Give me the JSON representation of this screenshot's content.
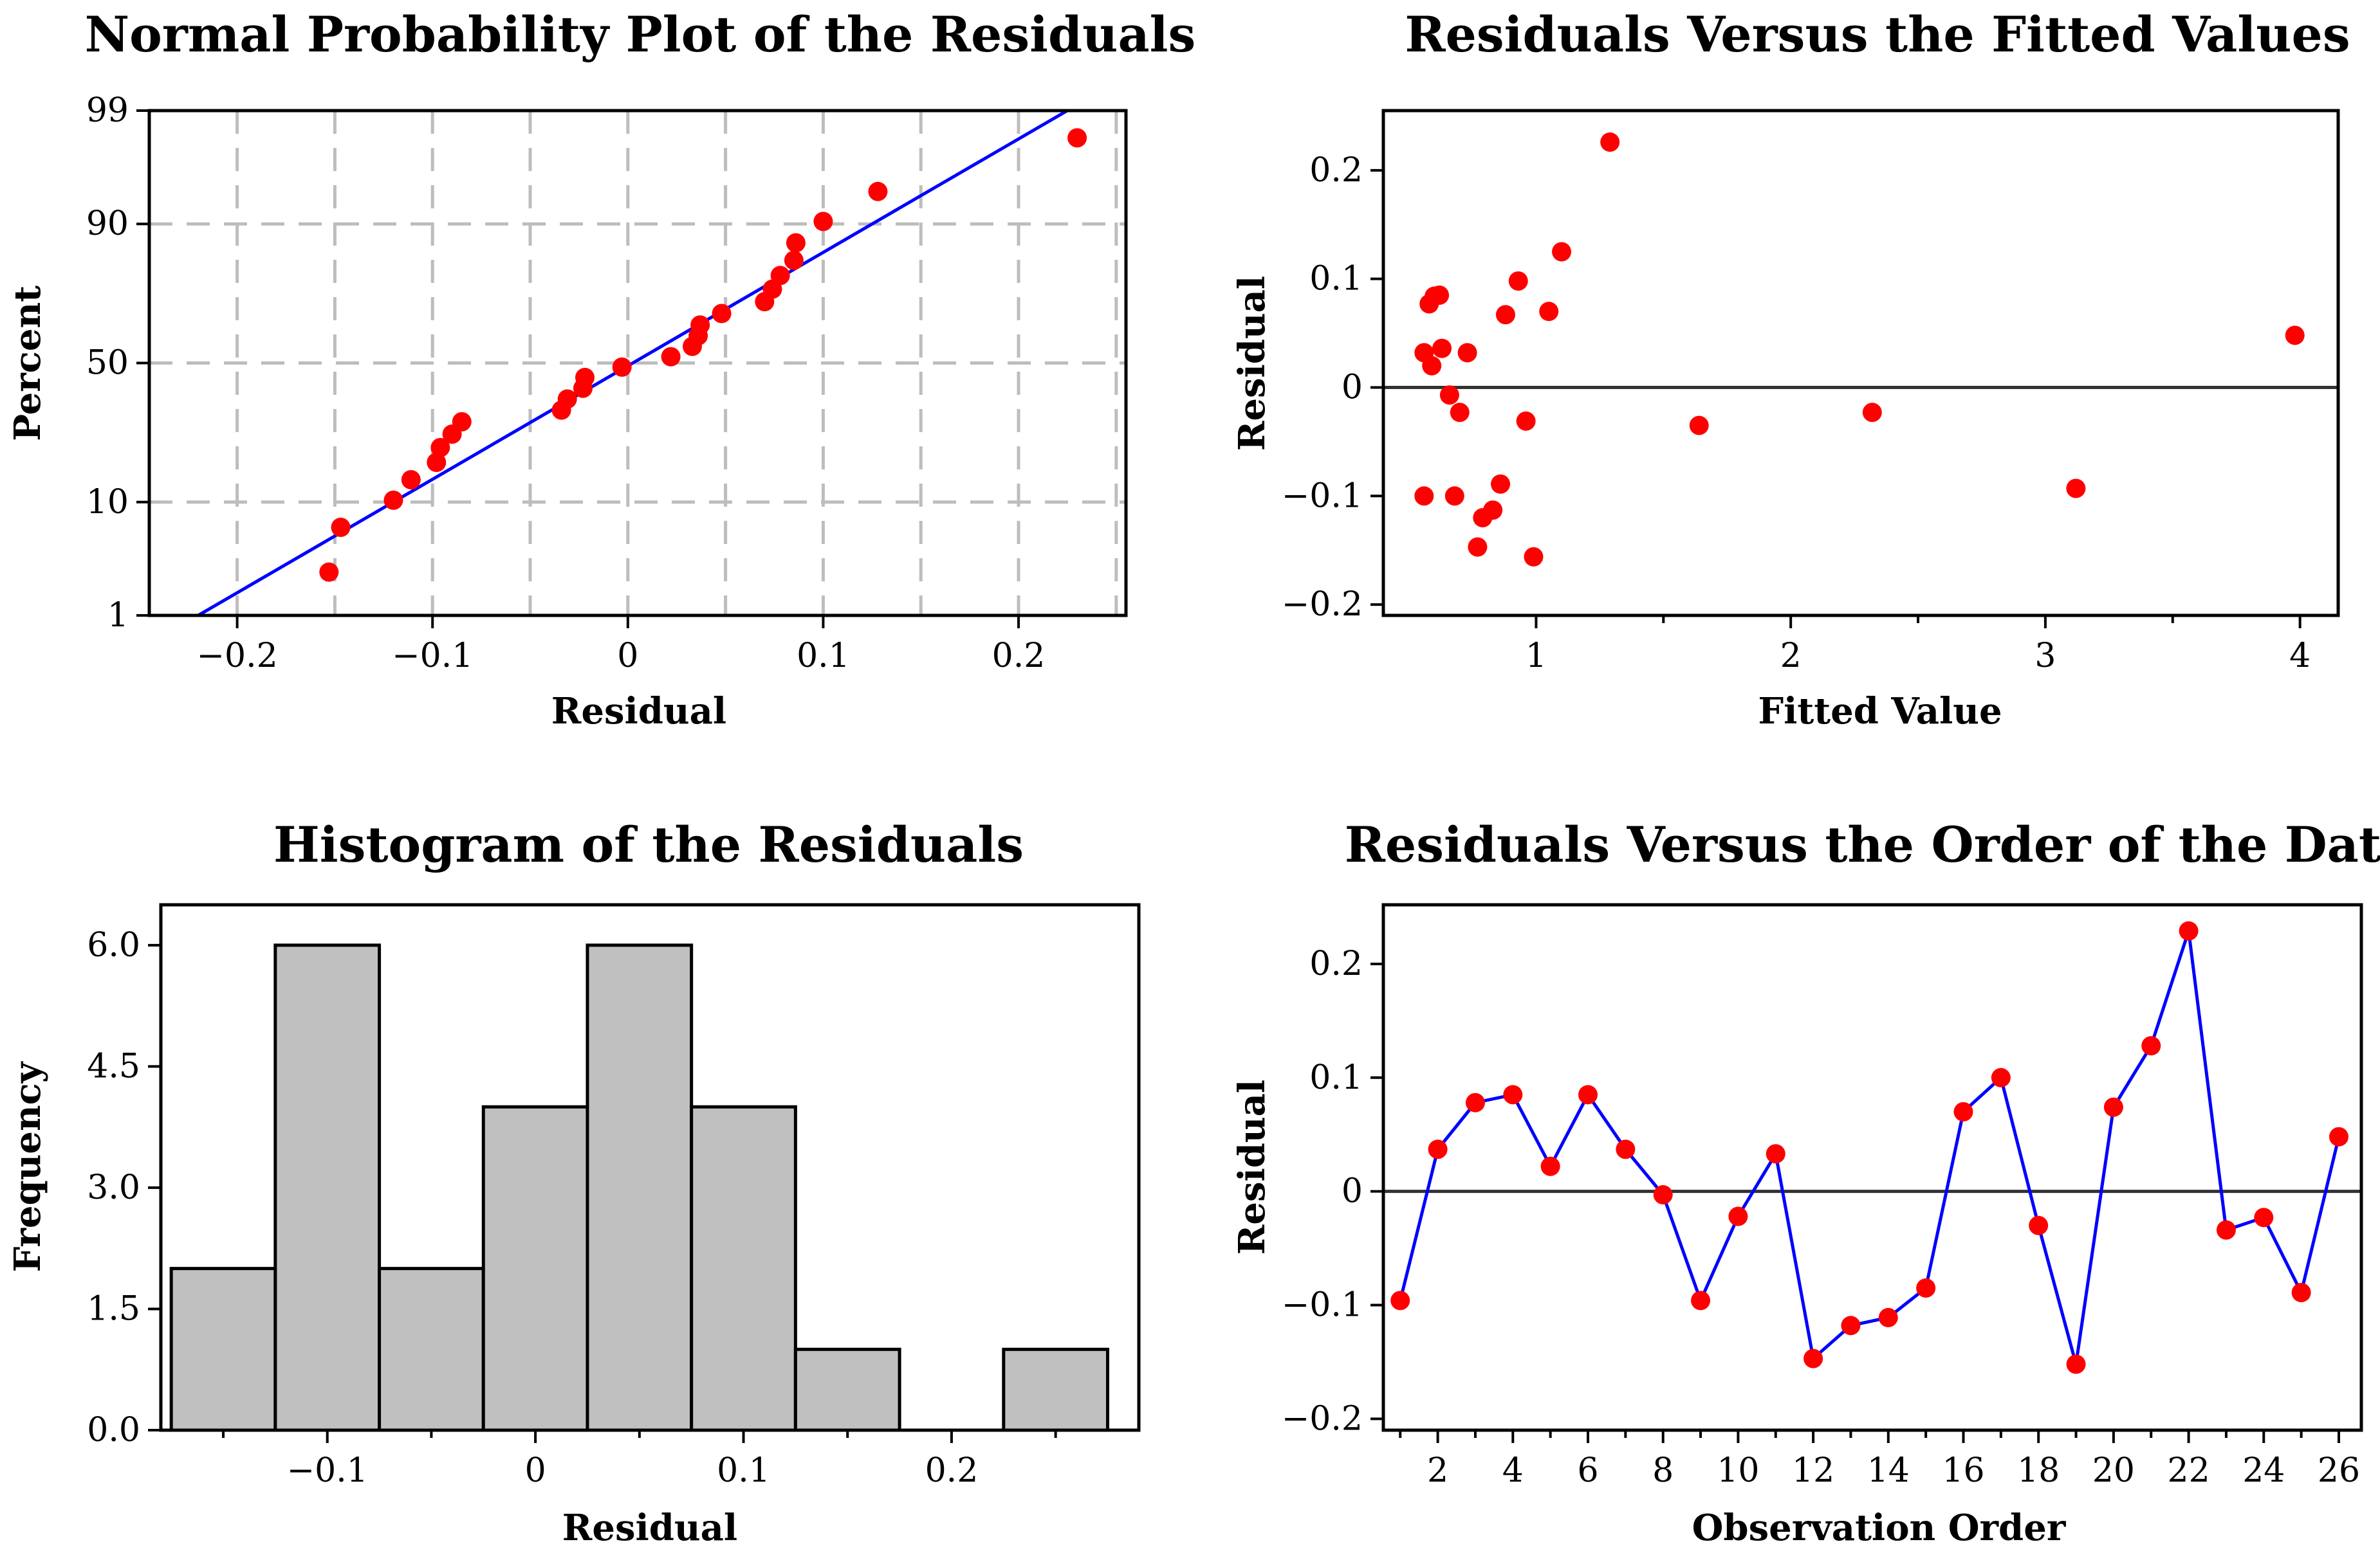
{
  "chart_data": [
    {
      "type": "scatter",
      "subtype": "normal-probability",
      "title": "Normal Probability Plot of the Residuals",
      "xlabel": "Residual",
      "ylabel": "Percent",
      "xlim": [
        -0.245,
        0.255
      ],
      "xticks": [
        -0.2,
        -0.1,
        0,
        0.1,
        0.2
      ],
      "xtick_labels": [
        "−0.2",
        "−0.1",
        "0",
        "0.1",
        "0.2"
      ],
      "xgrid": [
        -0.2,
        -0.15,
        -0.1,
        -0.05,
        0,
        0.05,
        0.1,
        0.15,
        0.2,
        0.25
      ],
      "yticks": [
        1,
        10,
        50,
        90,
        99
      ],
      "ytick_labels": [
        "1",
        "10",
        "50",
        "90",
        "99"
      ],
      "grid": true,
      "fit_line": {
        "from": [
          -0.22,
          1
        ],
        "to": [
          0.225,
          99
        ]
      },
      "points": [
        {
          "residual": -0.153,
          "percent": 2.7
        },
        {
          "residual": -0.147,
          "percent": 6.5
        },
        {
          "residual": -0.12,
          "percent": 10.3
        },
        {
          "residual": -0.111,
          "percent": 14.1
        },
        {
          "residual": -0.098,
          "percent": 18.0
        },
        {
          "residual": -0.096,
          "percent": 21.8
        },
        {
          "residual": -0.09,
          "percent": 25.6
        },
        {
          "residual": -0.085,
          "percent": 29.4
        },
        {
          "residual": -0.034,
          "percent": 33.2
        },
        {
          "residual": -0.031,
          "percent": 37.0
        },
        {
          "residual": -0.023,
          "percent": 40.8
        },
        {
          "residual": -0.022,
          "percent": 44.7
        },
        {
          "residual": -0.003,
          "percent": 48.5
        },
        {
          "residual": 0.022,
          "percent": 52.3
        },
        {
          "residual": 0.033,
          "percent": 56.1
        },
        {
          "residual": 0.036,
          "percent": 59.9
        },
        {
          "residual": 0.037,
          "percent": 63.7
        },
        {
          "residual": 0.048,
          "percent": 67.6
        },
        {
          "residual": 0.07,
          "percent": 71.4
        },
        {
          "residual": 0.074,
          "percent": 75.2
        },
        {
          "residual": 0.078,
          "percent": 79.0
        },
        {
          "residual": 0.085,
          "percent": 82.8
        },
        {
          "residual": 0.086,
          "percent": 86.6
        },
        {
          "residual": 0.1,
          "percent": 90.4
        },
        {
          "residual": 0.128,
          "percent": 94.3
        },
        {
          "residual": 0.23,
          "percent": 98.1
        }
      ]
    },
    {
      "type": "scatter",
      "title": "Residuals Versus the Fitted Values",
      "xlabel": "Fitted Value",
      "ylabel": "Residual",
      "xlim": [
        0.4,
        4.15
      ],
      "ylim": [
        -0.21,
        0.255
      ],
      "xticks": [
        1,
        2,
        3,
        4
      ],
      "xtick_labels": [
        "1",
        "2",
        "3",
        "4"
      ],
      "yticks": [
        -0.2,
        -0.1,
        0,
        0.1,
        0.2
      ],
      "ytick_labels": [
        "−0.2",
        "−0.1",
        "0",
        "0.1",
        "0.2"
      ],
      "reference_line": 0,
      "points": [
        {
          "fitted": 0.56,
          "residual": 0.032
        },
        {
          "fitted": 0.56,
          "residual": -0.1
        },
        {
          "fitted": 0.58,
          "residual": 0.077
        },
        {
          "fitted": 0.59,
          "residual": 0.02
        },
        {
          "fitted": 0.6,
          "residual": 0.084
        },
        {
          "fitted": 0.62,
          "residual": 0.085
        },
        {
          "fitted": 0.63,
          "residual": 0.036
        },
        {
          "fitted": 0.66,
          "residual": -0.007
        },
        {
          "fitted": 0.68,
          "residual": -0.1
        },
        {
          "fitted": 0.7,
          "residual": -0.023
        },
        {
          "fitted": 0.73,
          "residual": 0.032
        },
        {
          "fitted": 0.77,
          "residual": -0.147
        },
        {
          "fitted": 0.79,
          "residual": -0.12
        },
        {
          "fitted": 0.83,
          "residual": -0.113
        },
        {
          "fitted": 0.86,
          "residual": -0.089
        },
        {
          "fitted": 0.88,
          "residual": 0.067
        },
        {
          "fitted": 0.93,
          "residual": 0.098
        },
        {
          "fitted": 0.96,
          "residual": -0.031
        },
        {
          "fitted": 0.99,
          "residual": -0.156
        },
        {
          "fitted": 1.05,
          "residual": 0.07
        },
        {
          "fitted": 1.1,
          "residual": 0.125
        },
        {
          "fitted": 1.29,
          "residual": 0.226
        },
        {
          "fitted": 1.64,
          "residual": -0.035
        },
        {
          "fitted": 2.32,
          "residual": -0.023
        },
        {
          "fitted": 3.12,
          "residual": -0.093
        },
        {
          "fitted": 3.98,
          "residual": 0.048
        }
      ]
    },
    {
      "type": "bar",
      "subtype": "histogram",
      "title": "Histogram of the Residuals",
      "xlabel": "Residual",
      "ylabel": "Frequency",
      "bin_width": 0.05,
      "bin_centers": [
        -0.15,
        -0.1,
        -0.05,
        0,
        0.05,
        0.1,
        0.15,
        0.2,
        0.25
      ],
      "values": [
        2,
        6,
        2,
        4,
        6,
        4,
        1,
        0,
        1
      ],
      "xlim": [
        -0.18,
        0.29
      ],
      "ylim": [
        0,
        6.5
      ],
      "xticks": [
        -0.1,
        0,
        0.1,
        0.2
      ],
      "xtick_labels": [
        "−0.1",
        "0",
        "0.1",
        "0.2"
      ],
      "yticks": [
        0,
        1.5,
        3,
        4.5,
        6
      ],
      "ytick_labels": [
        "0.0",
        "1.5",
        "3.0",
        "4.5",
        "6.0"
      ]
    },
    {
      "type": "line",
      "title": "Residuals Versus the Order of the Data",
      "xlabel": "Observation Order",
      "ylabel": "Residual",
      "x": [
        1,
        2,
        3,
        4,
        5,
        6,
        7,
        8,
        9,
        10,
        11,
        12,
        13,
        14,
        15,
        16,
        17,
        18,
        19,
        20,
        21,
        22,
        23,
        24,
        25,
        26
      ],
      "values": [
        -0.096,
        0.037,
        0.078,
        0.085,
        0.022,
        0.085,
        0.037,
        -0.003,
        -0.096,
        -0.022,
        0.033,
        -0.147,
        -0.118,
        -0.111,
        -0.085,
        0.07,
        0.1,
        -0.03,
        -0.152,
        0.074,
        0.128,
        0.229,
        -0.034,
        -0.023,
        -0.089,
        0.048
      ],
      "xlim": [
        0.55,
        26.6
      ],
      "ylim": [
        -0.21,
        0.252
      ],
      "xticks": [
        2,
        4,
        6,
        8,
        10,
        12,
        14,
        16,
        18,
        20,
        22,
        24,
        26
      ],
      "xtick_labels": [
        "2",
        "4",
        "6",
        "8",
        "10",
        "12",
        "14",
        "16",
        "18",
        "20",
        "22",
        "24",
        "26"
      ],
      "yticks": [
        -0.2,
        -0.1,
        0,
        0.1,
        0.2
      ],
      "ytick_labels": [
        "−0.2",
        "−0.1",
        "0",
        "0.1",
        "0.2"
      ],
      "reference_line": 0
    }
  ]
}
